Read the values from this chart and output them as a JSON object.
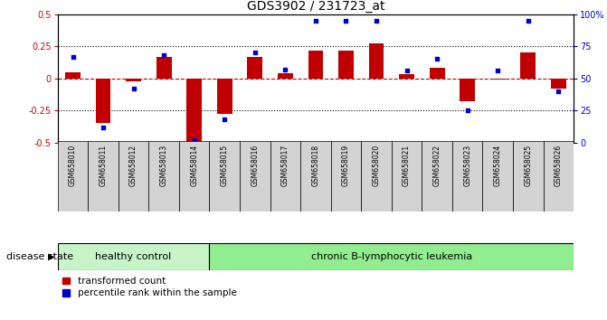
{
  "title": "GDS3902 / 231723_at",
  "samples": [
    "GSM658010",
    "GSM658011",
    "GSM658012",
    "GSM658013",
    "GSM658014",
    "GSM658015",
    "GSM658016",
    "GSM658017",
    "GSM658018",
    "GSM658019",
    "GSM658020",
    "GSM658021",
    "GSM658022",
    "GSM658023",
    "GSM658024",
    "GSM658025",
    "GSM658026"
  ],
  "red_bars": [
    0.05,
    -0.35,
    -0.02,
    0.17,
    -0.5,
    -0.28,
    0.17,
    0.04,
    0.22,
    0.22,
    0.27,
    0.03,
    0.08,
    -0.18,
    -0.01,
    0.2,
    -0.08
  ],
  "blue_dots_percentile": [
    67,
    12,
    42,
    68,
    2,
    18,
    70,
    57,
    95,
    95,
    95,
    56,
    65,
    25,
    56,
    95,
    40
  ],
  "ylim": [
    -0.5,
    0.5
  ],
  "y2lim": [
    0,
    100
  ],
  "yticks": [
    -0.5,
    -0.25,
    0.0,
    0.25,
    0.5
  ],
  "y2ticks": [
    0,
    25,
    50,
    75,
    100
  ],
  "dotted_lines": [
    -0.25,
    0.25
  ],
  "bar_color": "#c00000",
  "dot_color": "#0000cc",
  "plot_bg": "#ffffff",
  "title_fontsize": 10,
  "tick_fontsize": 7,
  "legend_fontsize": 7.5,
  "disease_label_fontsize": 8,
  "disease_state_fontsize": 8,
  "healthy_count": 5,
  "healthy_color": "#c8f5c8",
  "leukemia_color": "#90ee90",
  "label_bg": "#d3d3d3"
}
